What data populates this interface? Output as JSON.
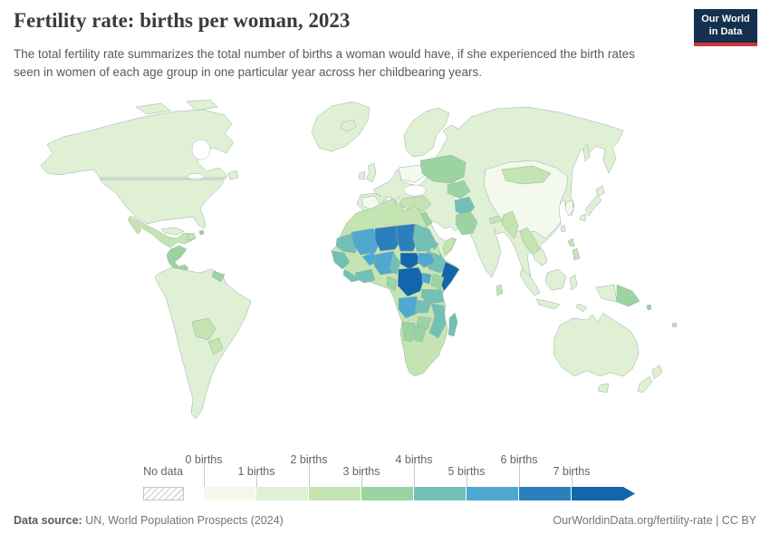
{
  "header": {
    "title": "Fertility rate: births per woman, 2023",
    "subtitle": "The total fertility rate summarizes the total number of births a woman would have, if she experienced the birth rates seen in women of each age group in one particular year across her childbearing years.",
    "logo": {
      "line1": "Our World",
      "line2": "in Data",
      "bg_color": "#14304f",
      "accent_color": "#d0363c"
    }
  },
  "legend": {
    "no_data_label": "No data",
    "tick_labels": [
      "0 births",
      "1 births",
      "2 births",
      "3 births",
      "4 births",
      "5 births",
      "6 births",
      "7 births"
    ],
    "bin_colors": [
      "#f3f9ed",
      "#dff0d4",
      "#c4e4b2",
      "#9cd3a3",
      "#72c0b6",
      "#4ea8d0",
      "#2b80bb",
      "#1366ab"
    ]
  },
  "footer": {
    "source_label": "Data source:",
    "source_text": " UN, World Population Prospects (2024)",
    "url": "OurWorldinData.org/fertility-rate",
    "separator": " | ",
    "license": "CC BY"
  },
  "chart_data": {
    "type": "choropleth-map",
    "title": "Fertility rate: births per woman, 2023",
    "metric": "Total fertility rate (births per woman)",
    "year": 2023,
    "projection": "world",
    "bin_edges": [
      0,
      1,
      2,
      3,
      4,
      5,
      6,
      7
    ],
    "bin_labels": [
      "0-1",
      "1-2",
      "2-3",
      "3-4",
      "4-5",
      "5-6",
      "6-7",
      "7+"
    ],
    "no_data_style": "hatched",
    "regions": {
      "greenland": 1,
      "canada": 1,
      "arctic1": 1,
      "arctic2": 1,
      "newfoundland": 1,
      "usa": 1,
      "mexico": 2,
      "baja": 2,
      "central_america": 3,
      "cuba": 1,
      "hispaniola": 2,
      "carib_dot1": 3,
      "south_america": 1,
      "bolivia": 2,
      "paraguay": 2,
      "guyanas": 3,
      "iceland": 1,
      "uk": 1,
      "ireland": 1,
      "scandinavia": 1,
      "eurasia": 1,
      "spain": 0,
      "italy": 0,
      "ukraine": 0,
      "turkey": 2,
      "syria": 3,
      "iraq": 3,
      "kazakhstan": 3,
      "central_asia": 3,
      "afghanistan": 4,
      "pakistan": 3,
      "nepal": 2,
      "china": 0,
      "mongolia": 2,
      "korea": 0,
      "myanmar": 2,
      "laos_cambodia": 2,
      "yemen": 4,
      "oman": 2,
      "sakhalin": 1,
      "japan_hokkaido": 1,
      "japan_honshu": 1,
      "japan_kyushu": 1,
      "taiwan": 1,
      "sri_lanka": 2,
      "philippines1": 2,
      "philippines2": 2,
      "sumatra": 1,
      "java": 1,
      "borneo": 1,
      "sulawesi": 1,
      "timor": 1,
      "west_papua": 1,
      "png": 3,
      "solomon": 3,
      "fiji": 2,
      "australia": 1,
      "tasmania": 1,
      "nz_north": 1,
      "nz_south": 1,
      "africa_base": 2,
      "mauritania": 4,
      "senegal": 4,
      "sierra_liberia": 4,
      "mali": 5,
      "burkina": 5,
      "cote_ghana": 4,
      "niger": 6,
      "chad": 6,
      "nigeria": 5,
      "cameroon": 4,
      "sudan": 4,
      "eritrea": 4,
      "ethiopia": 4,
      "somalia": 7,
      "car": 7,
      "south_sudan": 5,
      "gabon_congo": 3,
      "drc": 7,
      "uganda": 5,
      "kenya": 3,
      "tanzania": 4,
      "angola": 5,
      "zambia": 4,
      "mozambique": 4,
      "zimbabwe": 3,
      "namibia": 3,
      "botswana": 3,
      "madagascar": 4
    }
  }
}
